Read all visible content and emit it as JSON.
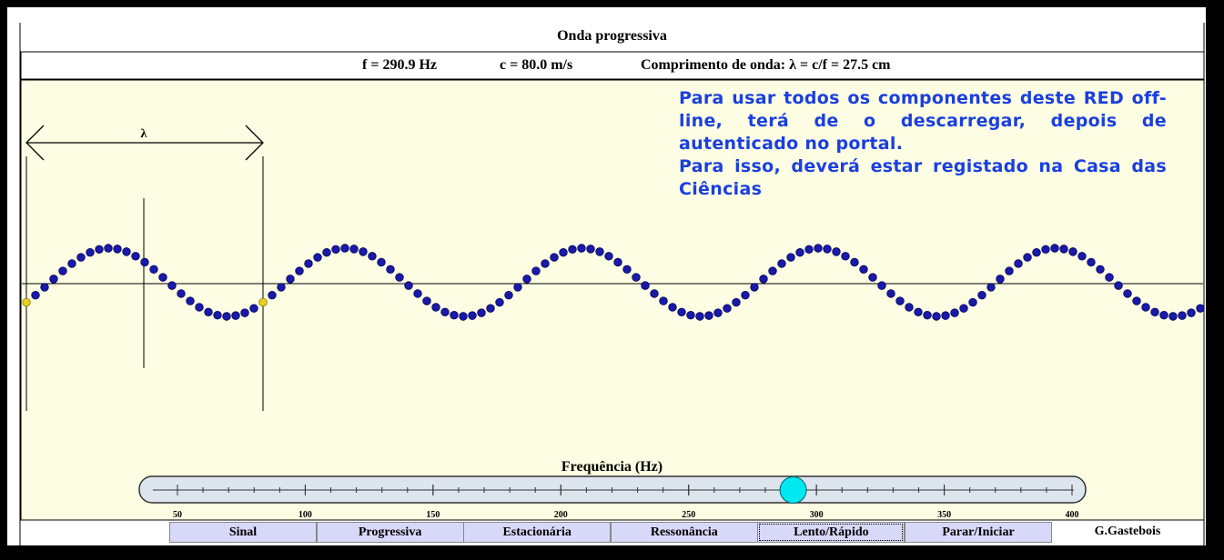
{
  "header": {
    "title": "Onda progressiva"
  },
  "info": [
    "f = 290.9 Hz",
    "c = 80.0 m/s",
    "Comprimento de onda: λ = c/f = 27.5 cm"
  ],
  "simulation": {
    "wavelength_label": "λ"
  },
  "message": [
    "Para usar todos os componentes deste RED off-line, terá de o descarregar, depois de autenticado no portal.",
    "Para isso, deverá estar registado na Casa das Ciências"
  ],
  "slider": {
    "label": "Frequência (Hz)",
    "ticks": [
      50,
      100,
      150,
      200,
      250,
      300,
      350,
      400
    ],
    "value": 290.9
  },
  "buttons": [
    "Sinal",
    "Progressiva",
    "Estacionária",
    "Ressonância",
    "Lento/Rápido",
    "Parar/Iniciar"
  ],
  "credit": "G.Gastebois"
}
